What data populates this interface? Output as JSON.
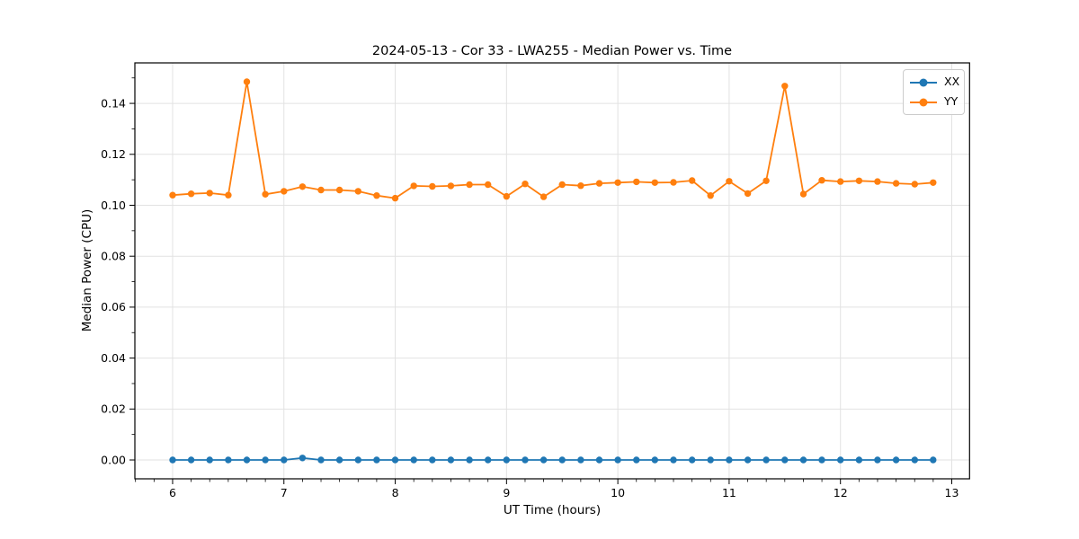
{
  "title": "2024-05-13 - Cor 33 - LWA255 - Median Power vs. Time",
  "chart_data": {
    "type": "line",
    "title": "2024-05-13 - Cor 33 - LWA255 - Median Power vs. Time",
    "xlabel": "UT Time (hours)",
    "ylabel": "Median Power (CPU)",
    "xlim": [
      5.661,
      13.16
    ],
    "ylim": [
      -0.0074,
      0.1559
    ],
    "xticks": [
      6,
      7,
      8,
      9,
      10,
      11,
      12,
      13
    ],
    "xtick_labels": [
      "6",
      "7",
      "8",
      "9",
      "10",
      "11",
      "12",
      "13"
    ],
    "yticks": [
      0.0,
      0.02,
      0.04,
      0.06,
      0.08,
      0.1,
      0.12,
      0.14
    ],
    "ytick_labels": [
      "0.00",
      "0.02",
      "0.04",
      "0.06",
      "0.08",
      "0.10",
      "0.12",
      "0.14"
    ],
    "x_minor_step": 0.1666667,
    "y_minor_step": 0.01,
    "grid": true,
    "grid_color": "#e2e2e2",
    "legend_position": "upper right",
    "x": [
      6.0,
      6.167,
      6.333,
      6.5,
      6.667,
      6.833,
      7.0,
      7.167,
      7.333,
      7.5,
      7.667,
      7.833,
      8.0,
      8.167,
      8.333,
      8.5,
      8.667,
      8.833,
      9.0,
      9.167,
      9.333,
      9.5,
      9.667,
      9.833,
      10.0,
      10.167,
      10.333,
      10.5,
      10.667,
      10.833,
      11.0,
      11.167,
      11.333,
      11.5,
      11.667,
      11.833,
      12.0,
      12.167,
      12.333,
      12.5,
      12.667,
      12.833
    ],
    "series": [
      {
        "name": "XX",
        "color": "#1f77b4",
        "values": [
          0.0,
          0.0,
          0.0,
          0.0,
          0.0,
          0.0,
          0.0,
          0.0008,
          0.0,
          0.0,
          0.0,
          0.0,
          0.0,
          0.0,
          0.0,
          0.0,
          0.0,
          0.0,
          0.0,
          0.0,
          0.0,
          0.0,
          0.0,
          0.0,
          0.0,
          0.0,
          0.0,
          0.0,
          0.0,
          0.0,
          0.0,
          0.0,
          0.0,
          0.0,
          0.0,
          0.0,
          0.0,
          0.0,
          0.0,
          0.0,
          0.0,
          0.0
        ]
      },
      {
        "name": "YY",
        "color": "#ff7f0e",
        "values": [
          0.104,
          0.1045,
          0.1048,
          0.104,
          0.1485,
          0.1043,
          0.1055,
          0.1073,
          0.106,
          0.106,
          0.1055,
          0.1038,
          0.1028,
          0.1076,
          0.1074,
          0.1076,
          0.1081,
          0.1081,
          0.1035,
          0.1084,
          0.1033,
          0.1081,
          0.1077,
          0.1086,
          0.1089,
          0.1092,
          0.1089,
          0.109,
          0.1097,
          0.1038,
          0.1094,
          0.1046,
          0.1096,
          0.1468,
          0.1044,
          0.1098,
          0.1093,
          0.1096,
          0.1093,
          0.1086,
          0.1083,
          0.1089
        ]
      }
    ]
  }
}
